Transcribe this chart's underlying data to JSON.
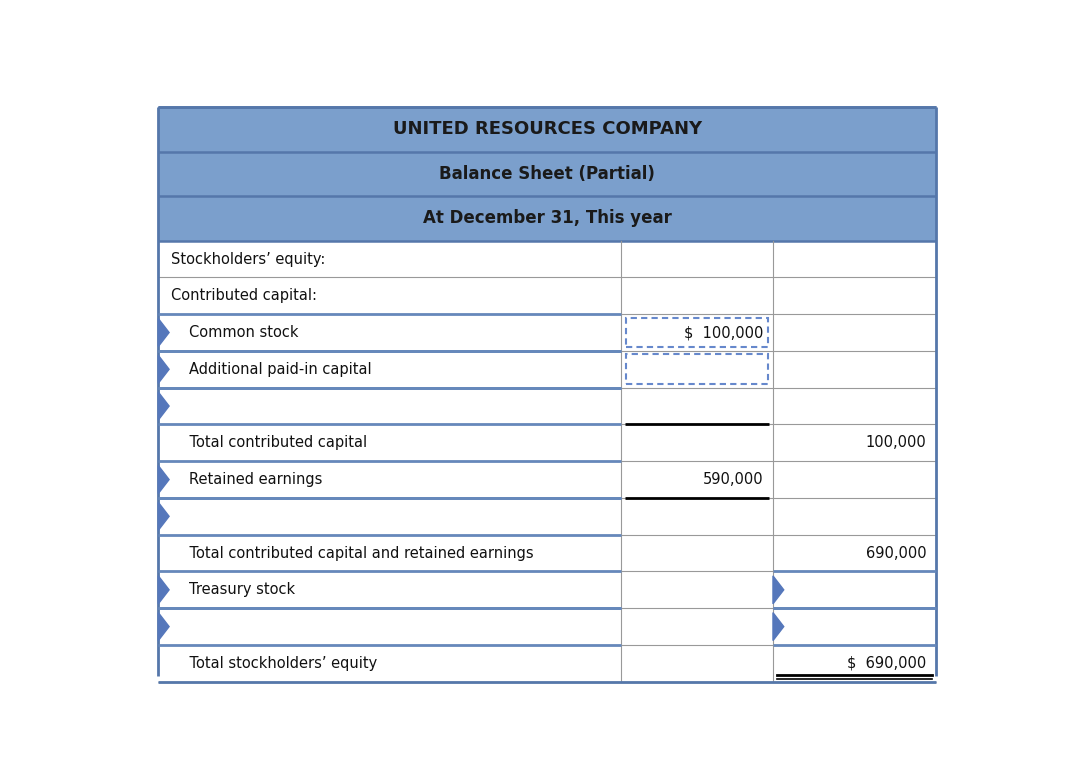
{
  "title1": "UNITED RESOURCES COMPANY",
  "title2": "Balance Sheet (Partial)",
  "title3": "At December 31, This year",
  "header_bg": "#7B9FCC",
  "header_text_color": "#1a1a1a",
  "border_color": "#5577AA",
  "row_border_color": "#6688BB",
  "grid_color": "#999999",
  "rows": [
    {
      "label": "Stockholders’ equity:",
      "col1": "",
      "col2": "",
      "indent": 0,
      "highlight": false,
      "dotted_col1": false,
      "arrow_col2": false
    },
    {
      "label": "Contributed capital:",
      "col1": "",
      "col2": "",
      "indent": 0,
      "highlight": false,
      "dotted_col1": false,
      "arrow_col2": false
    },
    {
      "label": "Common stock",
      "col1": "$  100,000",
      "col2": "",
      "indent": 1,
      "highlight": true,
      "dotted_col1": true,
      "arrow_col2": false
    },
    {
      "label": "Additional paid-in capital",
      "col1": "",
      "col2": "",
      "indent": 1,
      "highlight": true,
      "dotted_col1": true,
      "arrow_col2": false
    },
    {
      "label": "",
      "col1": "",
      "col2": "",
      "indent": 0,
      "highlight": true,
      "dotted_col1": false,
      "arrow_col2": false
    },
    {
      "label": "    Total contributed capital",
      "col1": "",
      "col2": "100,000",
      "indent": 0,
      "highlight": false,
      "dotted_col1": false,
      "arrow_col2": false,
      "line_above_col1": true
    },
    {
      "label": "Retained earnings",
      "col1": "590,000",
      "col2": "",
      "indent": 1,
      "highlight": true,
      "dotted_col1": false,
      "arrow_col2": false
    },
    {
      "label": "",
      "col1": "",
      "col2": "",
      "indent": 0,
      "highlight": true,
      "dotted_col1": false,
      "arrow_col2": false,
      "line_above_col1": true
    },
    {
      "label": "    Total contributed capital and retained earnings",
      "col1": "",
      "col2": "690,000",
      "indent": 0,
      "highlight": false,
      "dotted_col1": false,
      "arrow_col2": false
    },
    {
      "label": "Treasury stock",
      "col1": "",
      "col2": "",
      "indent": 1,
      "highlight": true,
      "dotted_col1": false,
      "arrow_col2": true
    },
    {
      "label": "",
      "col1": "",
      "col2": "",
      "indent": 0,
      "highlight": true,
      "dotted_col1": false,
      "arrow_col2": true
    },
    {
      "label": "    Total stockholders’ equity",
      "col1": "",
      "col2": "$  690,000",
      "indent": 0,
      "highlight": false,
      "dotted_col1": false,
      "arrow_col2": false,
      "double_underline_col2": true
    }
  ],
  "col_splits": [
    0.595,
    0.195,
    0.21
  ],
  "arrow_color": "#5577BB",
  "dotted_color": "#6688CC",
  "black": "#000000",
  "fig_w": 10.68,
  "fig_h": 7.7,
  "dpi": 100
}
